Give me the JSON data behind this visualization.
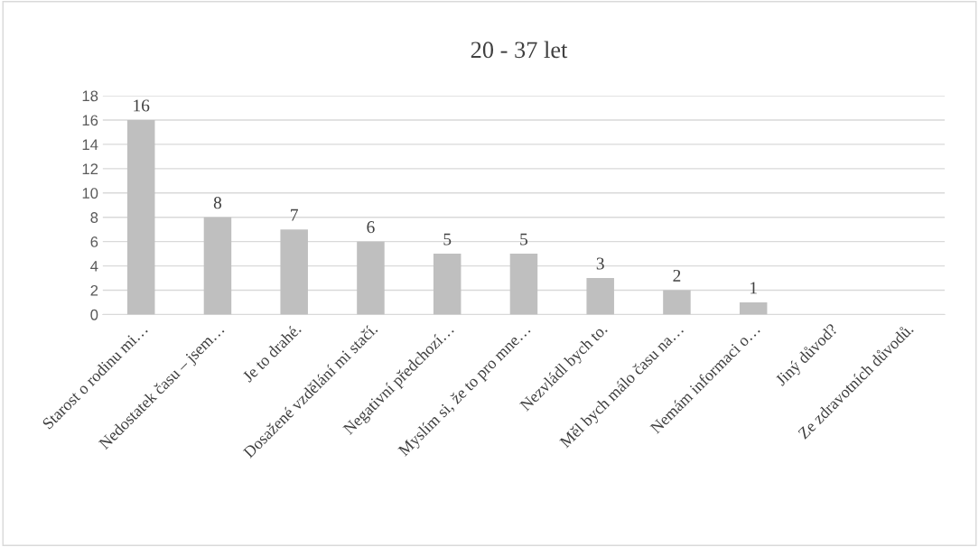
{
  "chart_data": {
    "type": "bar",
    "title": "20 - 37 let",
    "categories": [
      "Starost o rodinu mi…",
      "Nedostatek času – jsem…",
      "Je to drahé.",
      "Dosažené vzdělání mi stačí.",
      "Negativní předchozí…",
      "Myslím si, že to pro mne…",
      "Nezvládl bych to.",
      "Měl bych málo času na…",
      "Nemám informaci o…",
      "Jiný důvod?",
      "Ze zdravotních důvodů."
    ],
    "values": [
      16,
      8,
      7,
      6,
      5,
      5,
      3,
      2,
      1,
      0,
      0
    ],
    "value_labels": [
      "16",
      "8",
      "7",
      "6",
      "5",
      "5",
      "3",
      "2",
      "1",
      null,
      null
    ],
    "color": "#bfbfbf",
    "ylim": [
      0,
      18
    ],
    "yticks": [
      0,
      2,
      4,
      6,
      8,
      10,
      12,
      14,
      16,
      18
    ],
    "grid": "y",
    "legend": false
  }
}
